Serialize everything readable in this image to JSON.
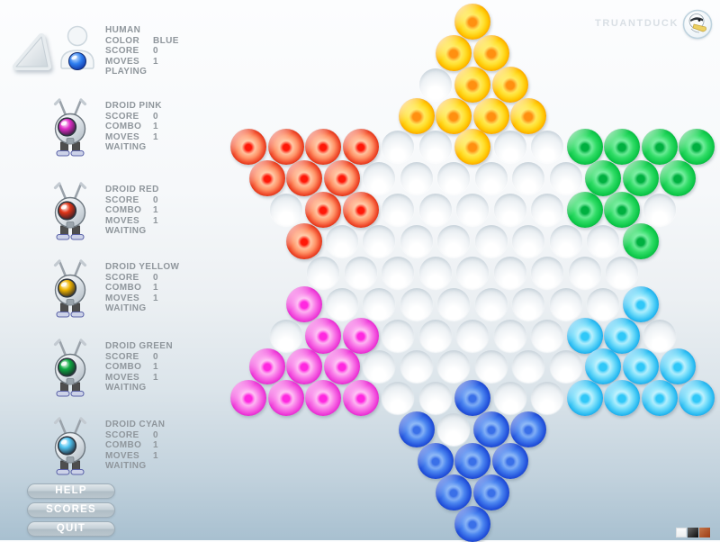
{
  "brand": {
    "name": "TRUANTDUCK"
  },
  "players": [
    {
      "id": "human",
      "name": "HUMAN",
      "icon": "human",
      "current": true,
      "marble_color": "#2f7ff0",
      "stats": [
        {
          "label": "COLOR",
          "value": "BLUE"
        },
        {
          "label": "SCORE",
          "value": "0"
        },
        {
          "label": "MOVES",
          "value": "1"
        }
      ],
      "status": "PLAYING"
    },
    {
      "id": "droid-pink",
      "name": "DROID PINK",
      "icon": "robot",
      "current": false,
      "eye_color": "#e02cc8",
      "stats": [
        {
          "label": "SCORE",
          "value": "0"
        },
        {
          "label": "COMBO",
          "value": "1"
        },
        {
          "label": "MOVES",
          "value": "1"
        }
      ],
      "status": "WAITING"
    },
    {
      "id": "droid-red",
      "name": "DROID RED",
      "icon": "robot",
      "current": false,
      "eye_color": "#e03418",
      "stats": [
        {
          "label": "SCORE",
          "value": "0"
        },
        {
          "label": "COMBO",
          "value": "1"
        },
        {
          "label": "MOVES",
          "value": "1"
        }
      ],
      "status": "WAITING"
    },
    {
      "id": "droid-yellow",
      "name": "DROID YELLOW",
      "icon": "robot",
      "current": false,
      "eye_color": "#f0b400",
      "stats": [
        {
          "label": "SCORE",
          "value": "0"
        },
        {
          "label": "COMBO",
          "value": "1"
        },
        {
          "label": "MOVES",
          "value": "1"
        }
      ],
      "status": "WAITING"
    },
    {
      "id": "droid-green",
      "name": "DROID GREEN",
      "icon": "robot",
      "current": false,
      "eye_color": "#0da840",
      "stats": [
        {
          "label": "SCORE",
          "value": "0"
        },
        {
          "label": "COMBO",
          "value": "1"
        },
        {
          "label": "MOVES",
          "value": "1"
        }
      ],
      "status": "WAITING"
    },
    {
      "id": "droid-cyan",
      "name": "DROID CYAN",
      "icon": "robot",
      "current": false,
      "eye_color": "#50c4f0",
      "stats": [
        {
          "label": "SCORE",
          "value": "0"
        },
        {
          "label": "COMBO",
          "value": "1"
        },
        {
          "label": "MOVES",
          "value": "1"
        }
      ],
      "status": "WAITING"
    }
  ],
  "menu": [
    {
      "label": "HELP"
    },
    {
      "label": "SCORES"
    },
    {
      "label": "QUIT"
    }
  ],
  "board": {
    "legend": {
      "Y": "yellow",
      "R": "red",
      "G": "green",
      "M": "magenta",
      "C": "cyan",
      "B": "blue",
      ".": "empty"
    },
    "marble_colors": {
      "yellow": "#ffd400",
      "red": "#d42408",
      "green": "#0cc748",
      "magenta": "#ee3ad8",
      "cyan": "#2cbdf2",
      "blue": "#2353dc"
    },
    "rows": [
      "Y",
      "YY",
      ".YY",
      "YYYY",
      "RRRR..Y..GGGG",
      "RRR......GGG",
      ".RR.....GG.",
      "R........G",
      ".........",
      "M........C",
      ".MM.....CC.",
      "MMM......CCC",
      "MMMM..B..CCCC",
      "B.BB",
      "BBB",
      "BB",
      "B"
    ]
  },
  "swatches": [
    {
      "name": "white",
      "color": "#f5f6f7"
    },
    {
      "name": "black",
      "color": "#1c1c1c"
    },
    {
      "name": "orange",
      "color": "#b0521e"
    }
  ]
}
